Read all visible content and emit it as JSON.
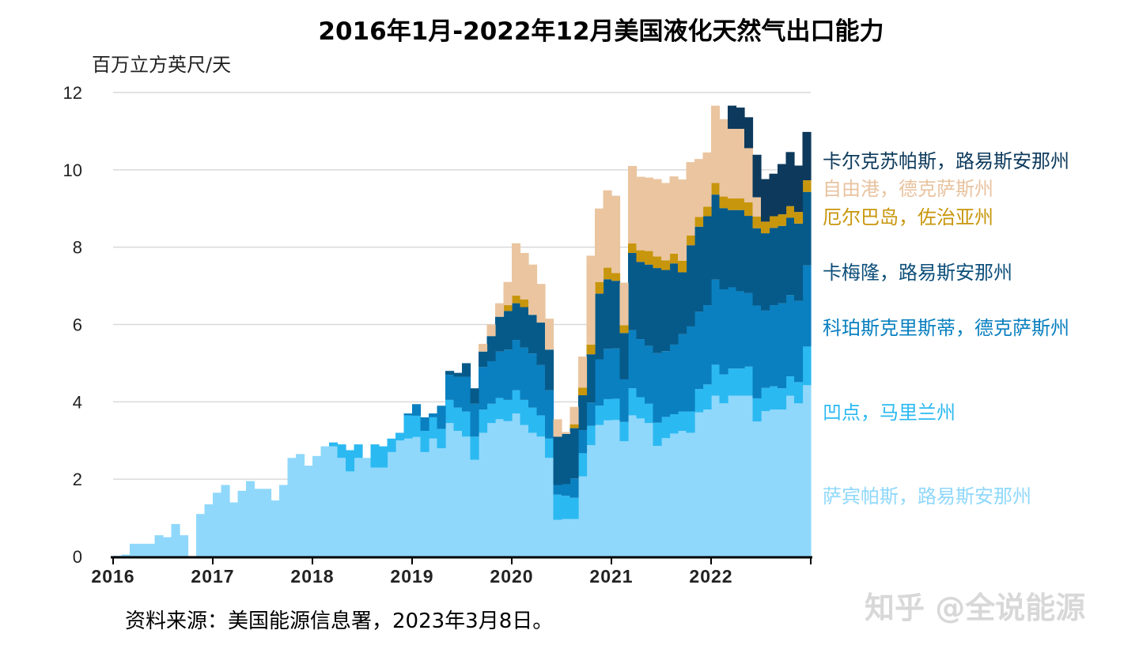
{
  "chart_data": {
    "type": "area",
    "stacked": true,
    "step": true,
    "title": "2016年1月-2022年12月美国液化天然气出口能力",
    "ylabel": "百万立方英尺/天",
    "xlabel": "",
    "ylim": [
      0,
      12
    ],
    "yticks": [
      0,
      2,
      4,
      6,
      8,
      10,
      12
    ],
    "xticks": [
      "2016",
      "2017",
      "2018",
      "2019",
      "2020",
      "2021",
      "2022"
    ],
    "x_start": "2016-01",
    "x_end": "2022-12",
    "frequency": "monthly",
    "grid": true,
    "legend_placement": "right (inline labels)",
    "series": [
      {
        "name": "萨宾帕斯，路易斯安那州",
        "color": "#8fd8fb",
        "values": [
          0.02,
          0.05,
          0.33,
          0.33,
          0.33,
          0.55,
          0.5,
          0.84,
          0.55,
          0,
          1.1,
          1.35,
          1.65,
          1.85,
          1.4,
          1.7,
          1.95,
          1.75,
          1.75,
          1.45,
          1.85,
          2.55,
          2.65,
          2.35,
          2.6,
          2.85,
          2.85,
          2.55,
          2.2,
          2.55,
          2.55,
          2.3,
          2.3,
          2.7,
          3.0,
          3.05,
          3.09,
          2.7,
          3.05,
          2.8,
          3.45,
          3.25,
          3.1,
          2.5,
          3.2,
          3.45,
          3.55,
          3.5,
          3.7,
          3.4,
          3.2,
          3.1,
          2.55,
          0.95,
          0.97,
          0.97,
          2.07,
          2.88,
          3.4,
          3.52,
          3.53,
          2.98,
          3.65,
          3.57,
          3.45,
          2.86,
          3.06,
          3.18,
          3.25,
          3.2,
          3.73,
          3.8,
          4.16,
          3.96,
          4.16,
          4.16,
          4.16,
          3.49,
          3.76,
          3.8,
          3.8,
          4.16,
          3.96,
          4.43
        ]
      },
      {
        "name": "凹点，马里兰州",
        "color": "#2bb9f2",
        "values": [
          0,
          0,
          0,
          0,
          0,
          0,
          0,
          0,
          0,
          0,
          0,
          0,
          0,
          0,
          0,
          0,
          0,
          0,
          0,
          0,
          0,
          0,
          0,
          0,
          0,
          0,
          0.1,
          0.35,
          0.55,
          0.35,
          0,
          0.6,
          0.55,
          0.35,
          0.2,
          0.6,
          0.55,
          0.55,
          0.55,
          0.5,
          0.6,
          0.6,
          0.65,
          0.6,
          0.6,
          0.5,
          0.55,
          0.55,
          0.6,
          0.65,
          0.65,
          0.55,
          0.5,
          0.65,
          0.6,
          0.55,
          0.6,
          0.5,
          0.5,
          0.55,
          0.55,
          0.5,
          0.7,
          0.55,
          0.5,
          0.6,
          0.55,
          0.5,
          0.5,
          0.55,
          0.6,
          0.65,
          0.8,
          0.75,
          0.7,
          0.7,
          0.75,
          0.6,
          0.6,
          0.6,
          0.55,
          0.5,
          0.55,
          1.0
        ]
      },
      {
        "name": "科珀斯克里斯蒂，德克萨斯州",
        "color": "#0a80c0",
        "values": [
          0,
          0,
          0,
          0,
          0,
          0,
          0,
          0,
          0,
          0,
          0,
          0,
          0,
          0,
          0,
          0,
          0,
          0,
          0,
          0,
          0,
          0,
          0,
          0,
          0,
          0,
          0,
          0,
          0,
          0,
          0,
          0,
          0,
          0,
          0,
          0.05,
          0.3,
          0.35,
          0.1,
          0.6,
          0.65,
          0.8,
          0.9,
          0.85,
          1.1,
          1.1,
          1.2,
          1.3,
          1.3,
          1.35,
          1.4,
          1.3,
          1.25,
          0.25,
          0.3,
          0.5,
          0.6,
          0.6,
          1.2,
          1.3,
          1.3,
          1.1,
          1.5,
          1.5,
          1.5,
          1.8,
          1.7,
          1.8,
          2.0,
          2.2,
          2.0,
          2.05,
          2.2,
          2.2,
          2.1,
          2.0,
          1.9,
          2.4,
          2.0,
          2.1,
          2.2,
          2.1,
          2.1,
          2.1
        ]
      },
      {
        "name": "卡梅隆，路易斯安那州",
        "color": "#065a8a",
        "values": [
          0,
          0,
          0,
          0,
          0,
          0,
          0,
          0,
          0,
          0,
          0,
          0,
          0,
          0,
          0,
          0,
          0,
          0,
          0,
          0,
          0,
          0,
          0,
          0,
          0,
          0,
          0,
          0,
          0,
          0,
          0,
          0,
          0,
          0,
          0,
          0,
          0,
          0,
          0,
          0,
          0.1,
          0.1,
          0.35,
          0.4,
          0.4,
          0.65,
          0.9,
          1.0,
          0.95,
          1.05,
          1.0,
          1.1,
          1.05,
          1.25,
          1.3,
          1.3,
          0.9,
          1.25,
          1.7,
          1.8,
          1.75,
          1.2,
          2.0,
          2.0,
          2.1,
          2.2,
          2.1,
          2.1,
          1.6,
          2.1,
          2.2,
          2.3,
          2.2,
          2.1,
          2.0,
          2.1,
          2.0,
          2.0,
          2.0,
          2.0,
          2.0,
          2.0,
          2.0,
          1.9
        ]
      },
      {
        "name": "厄尔巴岛，佐治亚州",
        "color": "#c8960c",
        "values": [
          0,
          0,
          0,
          0,
          0,
          0,
          0,
          0,
          0,
          0,
          0,
          0,
          0,
          0,
          0,
          0,
          0,
          0,
          0,
          0,
          0,
          0,
          0,
          0,
          0,
          0,
          0,
          0,
          0,
          0,
          0,
          0,
          0,
          0,
          0,
          0,
          0,
          0,
          0,
          0,
          0,
          0,
          0,
          0,
          0,
          0,
          0,
          0.15,
          0.2,
          0.2,
          0,
          0,
          0,
          0,
          0,
          0.1,
          0.2,
          0.25,
          0.3,
          0.3,
          0.2,
          0.2,
          0.25,
          0.3,
          0.35,
          0.3,
          0.25,
          0.25,
          0.3,
          0.25,
          0.25,
          0.25,
          0.3,
          0.3,
          0.3,
          0.3,
          0.35,
          0.3,
          0.3,
          0.3,
          0.3,
          0.3,
          0.3,
          0.3
        ]
      },
      {
        "name": "自由港，德克萨斯州",
        "color": "#eac5a0",
        "values": [
          0,
          0,
          0,
          0,
          0,
          0,
          0,
          0,
          0,
          0,
          0,
          0,
          0,
          0,
          0,
          0,
          0,
          0,
          0,
          0,
          0,
          0,
          0,
          0,
          0,
          0,
          0,
          0,
          0,
          0,
          0,
          0,
          0,
          0,
          0,
          0,
          0,
          0,
          0,
          0,
          0,
          0,
          0,
          0,
          0.2,
          0.3,
          0.35,
          0.6,
          1.35,
          1.2,
          1.3,
          1.0,
          0.8,
          0.45,
          0.05,
          0.45,
          0.8,
          2.3,
          1.9,
          2.0,
          2.0,
          1.1,
          2.0,
          1.9,
          1.9,
          2.0,
          2.0,
          2.0,
          2.1,
          1.9,
          1.5,
          1.4,
          2.0,
          2.0,
          1.8,
          1.8,
          1.4,
          0.5,
          0,
          0,
          0,
          0,
          0,
          0
        ]
      },
      {
        "name": "卡尔克苏帕斯，路易斯安那州",
        "color": "#0d3a5c",
        "values": [
          0,
          0,
          0,
          0,
          0,
          0,
          0,
          0,
          0,
          0,
          0,
          0,
          0,
          0,
          0,
          0,
          0,
          0,
          0,
          0,
          0,
          0,
          0,
          0,
          0,
          0,
          0,
          0,
          0,
          0,
          0,
          0,
          0,
          0,
          0,
          0,
          0,
          0,
          0,
          0,
          0,
          0,
          0,
          0,
          0,
          0,
          0,
          0,
          0,
          0,
          0,
          0,
          0,
          0,
          0,
          0,
          0,
          0,
          0,
          0,
          0,
          0,
          0,
          0,
          0,
          0,
          0,
          0,
          0,
          0,
          0,
          0,
          0,
          0,
          0.6,
          0.55,
          0.8,
          1.1,
          1.1,
          1.1,
          1.3,
          1.4,
          1.2,
          1.25
        ]
      }
    ]
  },
  "labels": [
    {
      "text": "卡尔克苏帕斯，路易斯安那州",
      "color": "#0d3a5c"
    },
    {
      "text": "自由港，德克萨斯州",
      "color": "#e8c3a0"
    },
    {
      "text": "厄尔巴岛，佐治亚州",
      "color": "#c8960c"
    },
    {
      "text": "卡梅隆，路易斯安那州",
      "color": "#0d4f7a"
    },
    {
      "text": "科珀斯克里斯蒂，德克萨斯州",
      "color": "#0a80c0"
    },
    {
      "text": "凹点，马里兰州",
      "color": "#2bb9f2"
    },
    {
      "text": "萨宾帕斯，路易斯安那州",
      "color": "#8fd8fb"
    }
  ],
  "source": "资料来源：美国能源信息署，2023年3月8日。",
  "watermark": "知乎 @全说能源"
}
